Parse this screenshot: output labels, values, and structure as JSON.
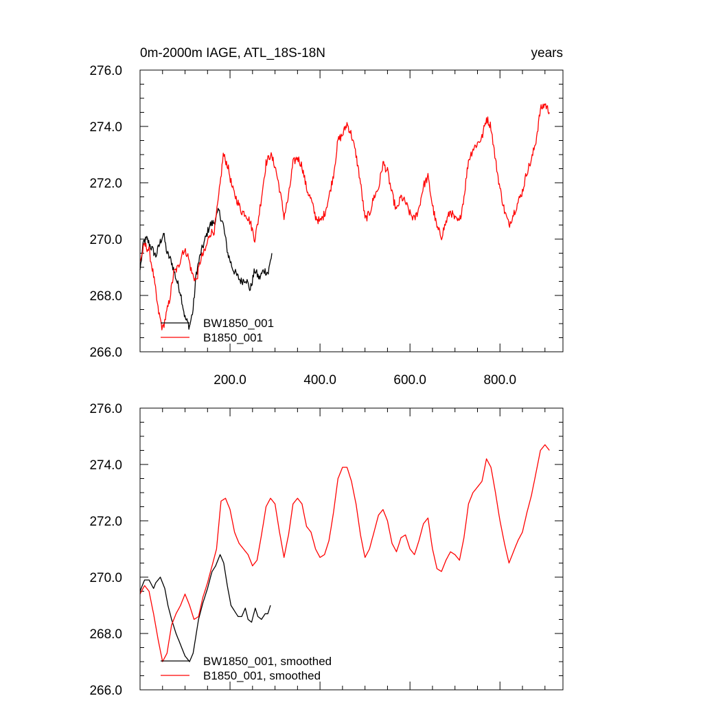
{
  "chart_data": [
    {
      "type": "line",
      "title_left": "0m-2000m IAGE, ATL_18S-18N",
      "title_right": "years",
      "xlabel": "",
      "ylabel": "",
      "xlim": [
        0,
        940
      ],
      "ylim": [
        266,
        276
      ],
      "x_ticks": [
        200,
        400,
        600,
        800
      ],
      "x_tick_labels": [
        "200.0",
        "400.0",
        "600.0",
        "800.0"
      ],
      "y_ticks": [
        266,
        268,
        270,
        272,
        274,
        276
      ],
      "y_tick_labels": [
        "266.0",
        "268.0",
        "270.0",
        "272.0",
        "274.0",
        "276.0"
      ],
      "grid": false,
      "legend_position": "bottom-left",
      "series": [
        {
          "name": "BW1850_001",
          "color": "#000000",
          "noise": 0.3,
          "points": [
            [
              0,
              268.9
            ],
            [
              8,
              269.9
            ],
            [
              15,
              270.0
            ],
            [
              25,
              269.7
            ],
            [
              35,
              269.4
            ],
            [
              45,
              269.9
            ],
            [
              52,
              270.2
            ],
            [
              60,
              269.5
            ],
            [
              70,
              269.2
            ],
            [
              80,
              268.6
            ],
            [
              90,
              268.1
            ],
            [
              100,
              267.2
            ],
            [
              110,
              266.9
            ],
            [
              118,
              267.5
            ],
            [
              125,
              268.8
            ],
            [
              135,
              269.5
            ],
            [
              145,
              270.0
            ],
            [
              155,
              270.5
            ],
            [
              165,
              270.6
            ],
            [
              175,
              271.0
            ],
            [
              185,
              270.5
            ],
            [
              195,
              269.5
            ],
            [
              205,
              269.0
            ],
            [
              215,
              268.7
            ],
            [
              225,
              268.5
            ],
            [
              235,
              268.6
            ],
            [
              245,
              268.2
            ],
            [
              255,
              268.9
            ],
            [
              265,
              268.6
            ],
            [
              275,
              268.9
            ],
            [
              285,
              268.8
            ],
            [
              293,
              269.5
            ]
          ]
        },
        {
          "name": "B1850_001",
          "color": "#ff0000",
          "noise": 0.3,
          "points": [
            [
              0,
              269.2
            ],
            [
              10,
              269.8
            ],
            [
              20,
              269.6
            ],
            [
              30,
              268.7
            ],
            [
              40,
              267.5
            ],
            [
              50,
              266.8
            ],
            [
              58,
              267.3
            ],
            [
              65,
              267.8
            ],
            [
              75,
              268.8
            ],
            [
              85,
              269.0
            ],
            [
              95,
              269.6
            ],
            [
              105,
              269.5
            ],
            [
              115,
              268.8
            ],
            [
              125,
              268.5
            ],
            [
              135,
              269.3
            ],
            [
              145,
              269.6
            ],
            [
              155,
              270.2
            ],
            [
              165,
              270.3
            ],
            [
              175,
              271.5
            ],
            [
              185,
              273.0
            ],
            [
              195,
              272.6
            ],
            [
              205,
              271.8
            ],
            [
              215,
              271.4
            ],
            [
              225,
              271.0
            ],
            [
              235,
              270.9
            ],
            [
              245,
              270.6
            ],
            [
              255,
              270.0
            ],
            [
              262,
              270.6
            ],
            [
              270,
              271.5
            ],
            [
              280,
              272.7
            ],
            [
              290,
              273.0
            ],
            [
              300,
              272.6
            ],
            [
              310,
              271.8
            ],
            [
              320,
              270.8
            ],
            [
              330,
              271.5
            ],
            [
              340,
              272.7
            ],
            [
              350,
              272.9
            ],
            [
              360,
              272.6
            ],
            [
              370,
              271.8
            ],
            [
              380,
              271.4
            ],
            [
              390,
              270.8
            ],
            [
              400,
              270.6
            ],
            [
              410,
              270.9
            ],
            [
              420,
              271.5
            ],
            [
              430,
              272.3
            ],
            [
              440,
              273.5
            ],
            [
              450,
              273.7
            ],
            [
              460,
              274.1
            ],
            [
              470,
              273.7
            ],
            [
              480,
              273.0
            ],
            [
              490,
              272.0
            ],
            [
              500,
              270.7
            ],
            [
              510,
              270.9
            ],
            [
              520,
              271.5
            ],
            [
              530,
              271.8
            ],
            [
              540,
              272.7
            ],
            [
              550,
              272.4
            ],
            [
              560,
              271.6
            ],
            [
              570,
              271.0
            ],
            [
              580,
              271.5
            ],
            [
              590,
              271.3
            ],
            [
              600,
              270.9
            ],
            [
              610,
              270.7
            ],
            [
              620,
              271.1
            ],
            [
              630,
              271.9
            ],
            [
              640,
              272.2
            ],
            [
              650,
              271.2
            ],
            [
              660,
              270.4
            ],
            [
              670,
              270.1
            ],
            [
              680,
              270.6
            ],
            [
              690,
              271.0
            ],
            [
              700,
              270.7
            ],
            [
              710,
              270.6
            ],
            [
              720,
              271.5
            ],
            [
              730,
              272.8
            ],
            [
              740,
              273.2
            ],
            [
              750,
              273.4
            ],
            [
              760,
              273.6
            ],
            [
              770,
              274.3
            ],
            [
              780,
              274.0
            ],
            [
              790,
              272.8
            ],
            [
              800,
              271.8
            ],
            [
              810,
              271.0
            ],
            [
              820,
              270.5
            ],
            [
              830,
              270.9
            ],
            [
              840,
              271.3
            ],
            [
              850,
              271.7
            ],
            [
              860,
              272.4
            ],
            [
              870,
              272.8
            ],
            [
              880,
              273.5
            ],
            [
              890,
              274.6
            ],
            [
              900,
              274.8
            ],
            [
              910,
              274.5
            ]
          ]
        }
      ]
    },
    {
      "type": "line",
      "title_left": "",
      "title_right": "",
      "xlabel": "",
      "ylabel": "",
      "xlim": [
        0,
        940
      ],
      "ylim": [
        266,
        276
      ],
      "x_ticks": [
        200,
        400,
        600,
        800
      ],
      "x_tick_labels": [],
      "y_ticks": [
        266,
        268,
        270,
        272,
        274,
        276
      ],
      "y_tick_labels": [
        "266.0",
        "268.0",
        "270.0",
        "272.0",
        "274.0",
        "276.0"
      ],
      "grid": false,
      "legend_position": "bottom-left",
      "series": [
        {
          "name": "BW1850_001, smoothed",
          "color": "#000000",
          "noise": 0,
          "points": [
            [
              0,
              269.5
            ],
            [
              10,
              269.9
            ],
            [
              20,
              269.9
            ],
            [
              30,
              269.6
            ],
            [
              35,
              269.8
            ],
            [
              45,
              270.0
            ],
            [
              55,
              269.6
            ],
            [
              62,
              269.0
            ],
            [
              70,
              268.5
            ],
            [
              80,
              268.0
            ],
            [
              90,
              267.6
            ],
            [
              100,
              267.2
            ],
            [
              110,
              267.0
            ],
            [
              118,
              267.3
            ],
            [
              125,
              268.0
            ],
            [
              130,
              268.5
            ],
            [
              140,
              269.1
            ],
            [
              150,
              269.6
            ],
            [
              160,
              270.2
            ],
            [
              168,
              270.4
            ],
            [
              178,
              270.8
            ],
            [
              186,
              270.5
            ],
            [
              194,
              269.7
            ],
            [
              202,
              269.0
            ],
            [
              210,
              268.8
            ],
            [
              218,
              268.6
            ],
            [
              226,
              268.6
            ],
            [
              234,
              268.9
            ],
            [
              240,
              268.5
            ],
            [
              248,
              268.4
            ],
            [
              256,
              268.9
            ],
            [
              262,
              268.6
            ],
            [
              270,
              268.5
            ],
            [
              278,
              268.7
            ],
            [
              284,
              268.7
            ],
            [
              290,
              269.0
            ]
          ]
        },
        {
          "name": "B1850_001, smoothed",
          "color": "#ff0000",
          "noise": 0,
          "points": [
            [
              0,
              269.4
            ],
            [
              10,
              269.7
            ],
            [
              20,
              269.5
            ],
            [
              30,
              268.7
            ],
            [
              40,
              267.8
            ],
            [
              50,
              267.0
            ],
            [
              60,
              267.3
            ],
            [
              70,
              268.3
            ],
            [
              80,
              268.7
            ],
            [
              90,
              269.0
            ],
            [
              100,
              269.4
            ],
            [
              110,
              269.0
            ],
            [
              120,
              268.5
            ],
            [
              130,
              268.6
            ],
            [
              140,
              269.3
            ],
            [
              150,
              269.8
            ],
            [
              160,
              270.4
            ],
            [
              170,
              271.0
            ],
            [
              180,
              272.7
            ],
            [
              190,
              272.8
            ],
            [
              200,
              272.4
            ],
            [
              210,
              271.6
            ],
            [
              220,
              271.2
            ],
            [
              230,
              271.0
            ],
            [
              240,
              270.8
            ],
            [
              250,
              270.4
            ],
            [
              260,
              270.6
            ],
            [
              270,
              271.5
            ],
            [
              280,
              272.5
            ],
            [
              290,
              272.8
            ],
            [
              300,
              272.6
            ],
            [
              310,
              271.6
            ],
            [
              320,
              270.7
            ],
            [
              330,
              271.5
            ],
            [
              340,
              272.6
            ],
            [
              350,
              272.8
            ],
            [
              360,
              272.6
            ],
            [
              370,
              271.8
            ],
            [
              380,
              271.6
            ],
            [
              390,
              271.0
            ],
            [
              400,
              270.7
            ],
            [
              410,
              270.8
            ],
            [
              420,
              271.3
            ],
            [
              430,
              272.3
            ],
            [
              440,
              273.5
            ],
            [
              450,
              273.9
            ],
            [
              460,
              273.9
            ],
            [
              470,
              273.4
            ],
            [
              480,
              272.6
            ],
            [
              490,
              271.5
            ],
            [
              500,
              270.7
            ],
            [
              510,
              271.0
            ],
            [
              520,
              271.6
            ],
            [
              530,
              272.2
            ],
            [
              540,
              272.4
            ],
            [
              550,
              272.0
            ],
            [
              560,
              271.2
            ],
            [
              570,
              270.9
            ],
            [
              580,
              271.4
            ],
            [
              590,
              271.5
            ],
            [
              600,
              271.0
            ],
            [
              610,
              270.8
            ],
            [
              620,
              271.3
            ],
            [
              630,
              271.9
            ],
            [
              640,
              272.1
            ],
            [
              650,
              271.0
            ],
            [
              660,
              270.3
            ],
            [
              670,
              270.2
            ],
            [
              680,
              270.6
            ],
            [
              690,
              270.9
            ],
            [
              700,
              270.8
            ],
            [
              710,
              270.6
            ],
            [
              720,
              271.4
            ],
            [
              730,
              272.6
            ],
            [
              740,
              273.0
            ],
            [
              750,
              273.2
            ],
            [
              760,
              273.4
            ],
            [
              770,
              274.2
            ],
            [
              780,
              273.9
            ],
            [
              790,
              273.0
            ],
            [
              800,
              272.0
            ],
            [
              810,
              271.2
            ],
            [
              820,
              270.5
            ],
            [
              830,
              270.9
            ],
            [
              840,
              271.3
            ],
            [
              850,
              271.6
            ],
            [
              860,
              272.3
            ],
            [
              870,
              272.9
            ],
            [
              880,
              273.7
            ],
            [
              890,
              274.5
            ],
            [
              900,
              274.7
            ],
            [
              910,
              274.5
            ]
          ]
        }
      ]
    }
  ]
}
